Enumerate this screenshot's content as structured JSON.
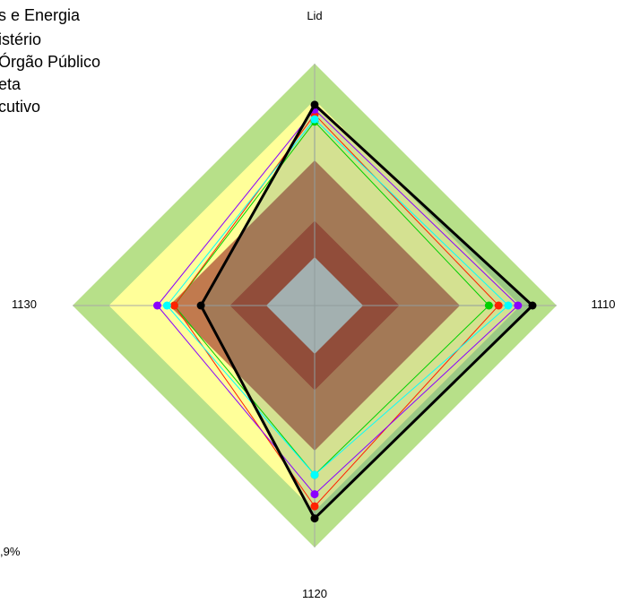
{
  "chart_data": {
    "type": "radar",
    "axes": [
      "Lid",
      "1110",
      "1120",
      "1130"
    ],
    "scale_max": 100,
    "bands": [
      {
        "value": 20,
        "color": "#c0c0c0"
      },
      {
        "value": 35,
        "color": "#a9422a"
      },
      {
        "value": 60,
        "color": "#c17a4e"
      },
      {
        "value": 85,
        "color": "#ffff99"
      },
      {
        "value": 100,
        "color": "#b7e089"
      }
    ],
    "series": [
      {
        "values": [
          76,
          72,
          70,
          58
        ],
        "color": "#00d000",
        "line_width": 1
      },
      {
        "values": [
          79,
          76,
          83,
          58
        ],
        "color": "#ff2200",
        "line_width": 1
      },
      {
        "values": [
          77,
          80,
          70,
          61
        ],
        "color": "#00ffff",
        "line_width": 1
      },
      {
        "values": [
          81,
          84,
          78,
          65
        ],
        "color": "#8a00ff",
        "line_width": 1
      },
      {
        "values": [
          83,
          90,
          88,
          47
        ],
        "color": "#000000",
        "line_width": 3
      }
    ],
    "legend": [
      "s e Energia",
      "istério",
      "Órgão Público",
      "eta",
      "cutivo"
    ],
    "note": ",9%"
  }
}
